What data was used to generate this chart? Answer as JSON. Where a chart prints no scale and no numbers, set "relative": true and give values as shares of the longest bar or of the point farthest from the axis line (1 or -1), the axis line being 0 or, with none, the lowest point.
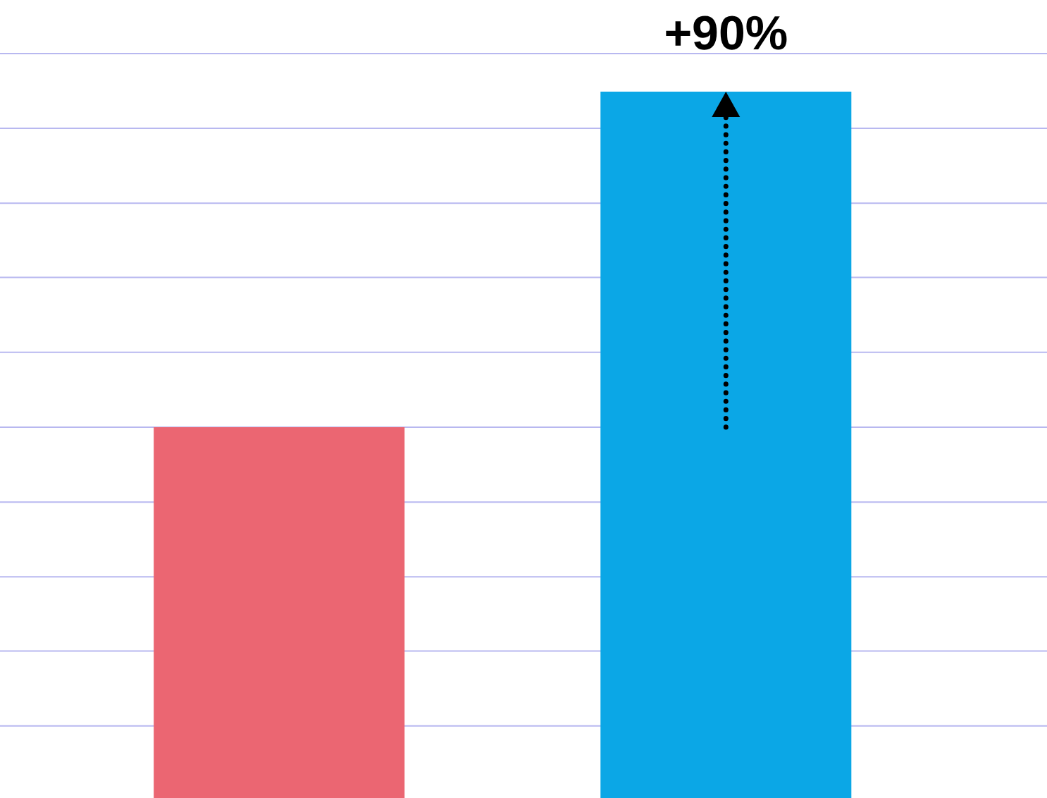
{
  "chart_data": {
    "type": "bar",
    "relative": true,
    "categories": [
      null,
      null
    ],
    "values": [
      0.525,
      1
    ],
    "colors": [
      "#eb6672",
      "#0ba7e6"
    ],
    "ref_lines": [
      {
        "axis": "y",
        "value": 0.102,
        "color": "#b8b8f0"
      },
      {
        "axis": "y",
        "value": 0.208,
        "color": "#b8b8f0"
      },
      {
        "axis": "y",
        "value": 0.313,
        "color": "#b8b8f0"
      },
      {
        "axis": "y",
        "value": 0.419,
        "color": "#b8b8f0"
      },
      {
        "axis": "y",
        "value": 0.525,
        "color": "#b8b8f0"
      },
      {
        "axis": "y",
        "value": 0.631,
        "color": "#b8b8f0"
      },
      {
        "axis": "y",
        "value": 0.737,
        "color": "#b8b8f0"
      },
      {
        "axis": "y",
        "value": 0.842,
        "color": "#b8b8f0"
      },
      {
        "axis": "y",
        "value": 0.948,
        "color": "#b8b8f0"
      },
      {
        "axis": "y",
        "value": 1.054,
        "color": "#b8b8f0"
      }
    ],
    "annotations": [
      "+90%"
    ]
  }
}
